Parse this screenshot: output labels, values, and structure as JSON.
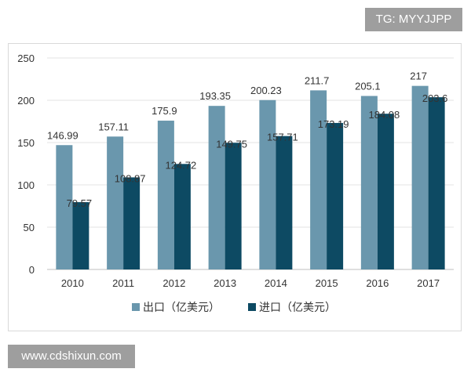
{
  "tag_label": "TG: MYYJJPP",
  "website_label": "www.cdshixun.com",
  "chart_data": {
    "type": "bar",
    "title": "",
    "xlabel": "",
    "ylabel": "",
    "ylim": [
      0,
      250
    ],
    "yticks": [
      0,
      50,
      100,
      150,
      200,
      250
    ],
    "categories": [
      "2010",
      "2011",
      "2012",
      "2013",
      "2014",
      "2015",
      "2016",
      "2017"
    ],
    "series": [
      {
        "name": "出口（亿美元）",
        "color": "#6a97ad",
        "values": [
          146.99,
          157.11,
          175.9,
          193.35,
          200.23,
          211.7,
          205.1,
          217
        ],
        "labels": [
          "146.99",
          "157.11",
          "175.9",
          "193.35",
          "200.23",
          "211.7",
          "205.1",
          "217"
        ]
      },
      {
        "name": "进口（亿美元）",
        "color": "#0d4a63",
        "values": [
          79.57,
          108.87,
          124.72,
          149.75,
          157.71,
          173.19,
          184.08,
          203.6
        ],
        "labels": [
          "79.57",
          "108.87",
          "124.72",
          "149.75",
          "157.71",
          "173.19",
          "184.08",
          "203.6"
        ]
      }
    ],
    "legend_position": "bottom",
    "grid": true
  }
}
